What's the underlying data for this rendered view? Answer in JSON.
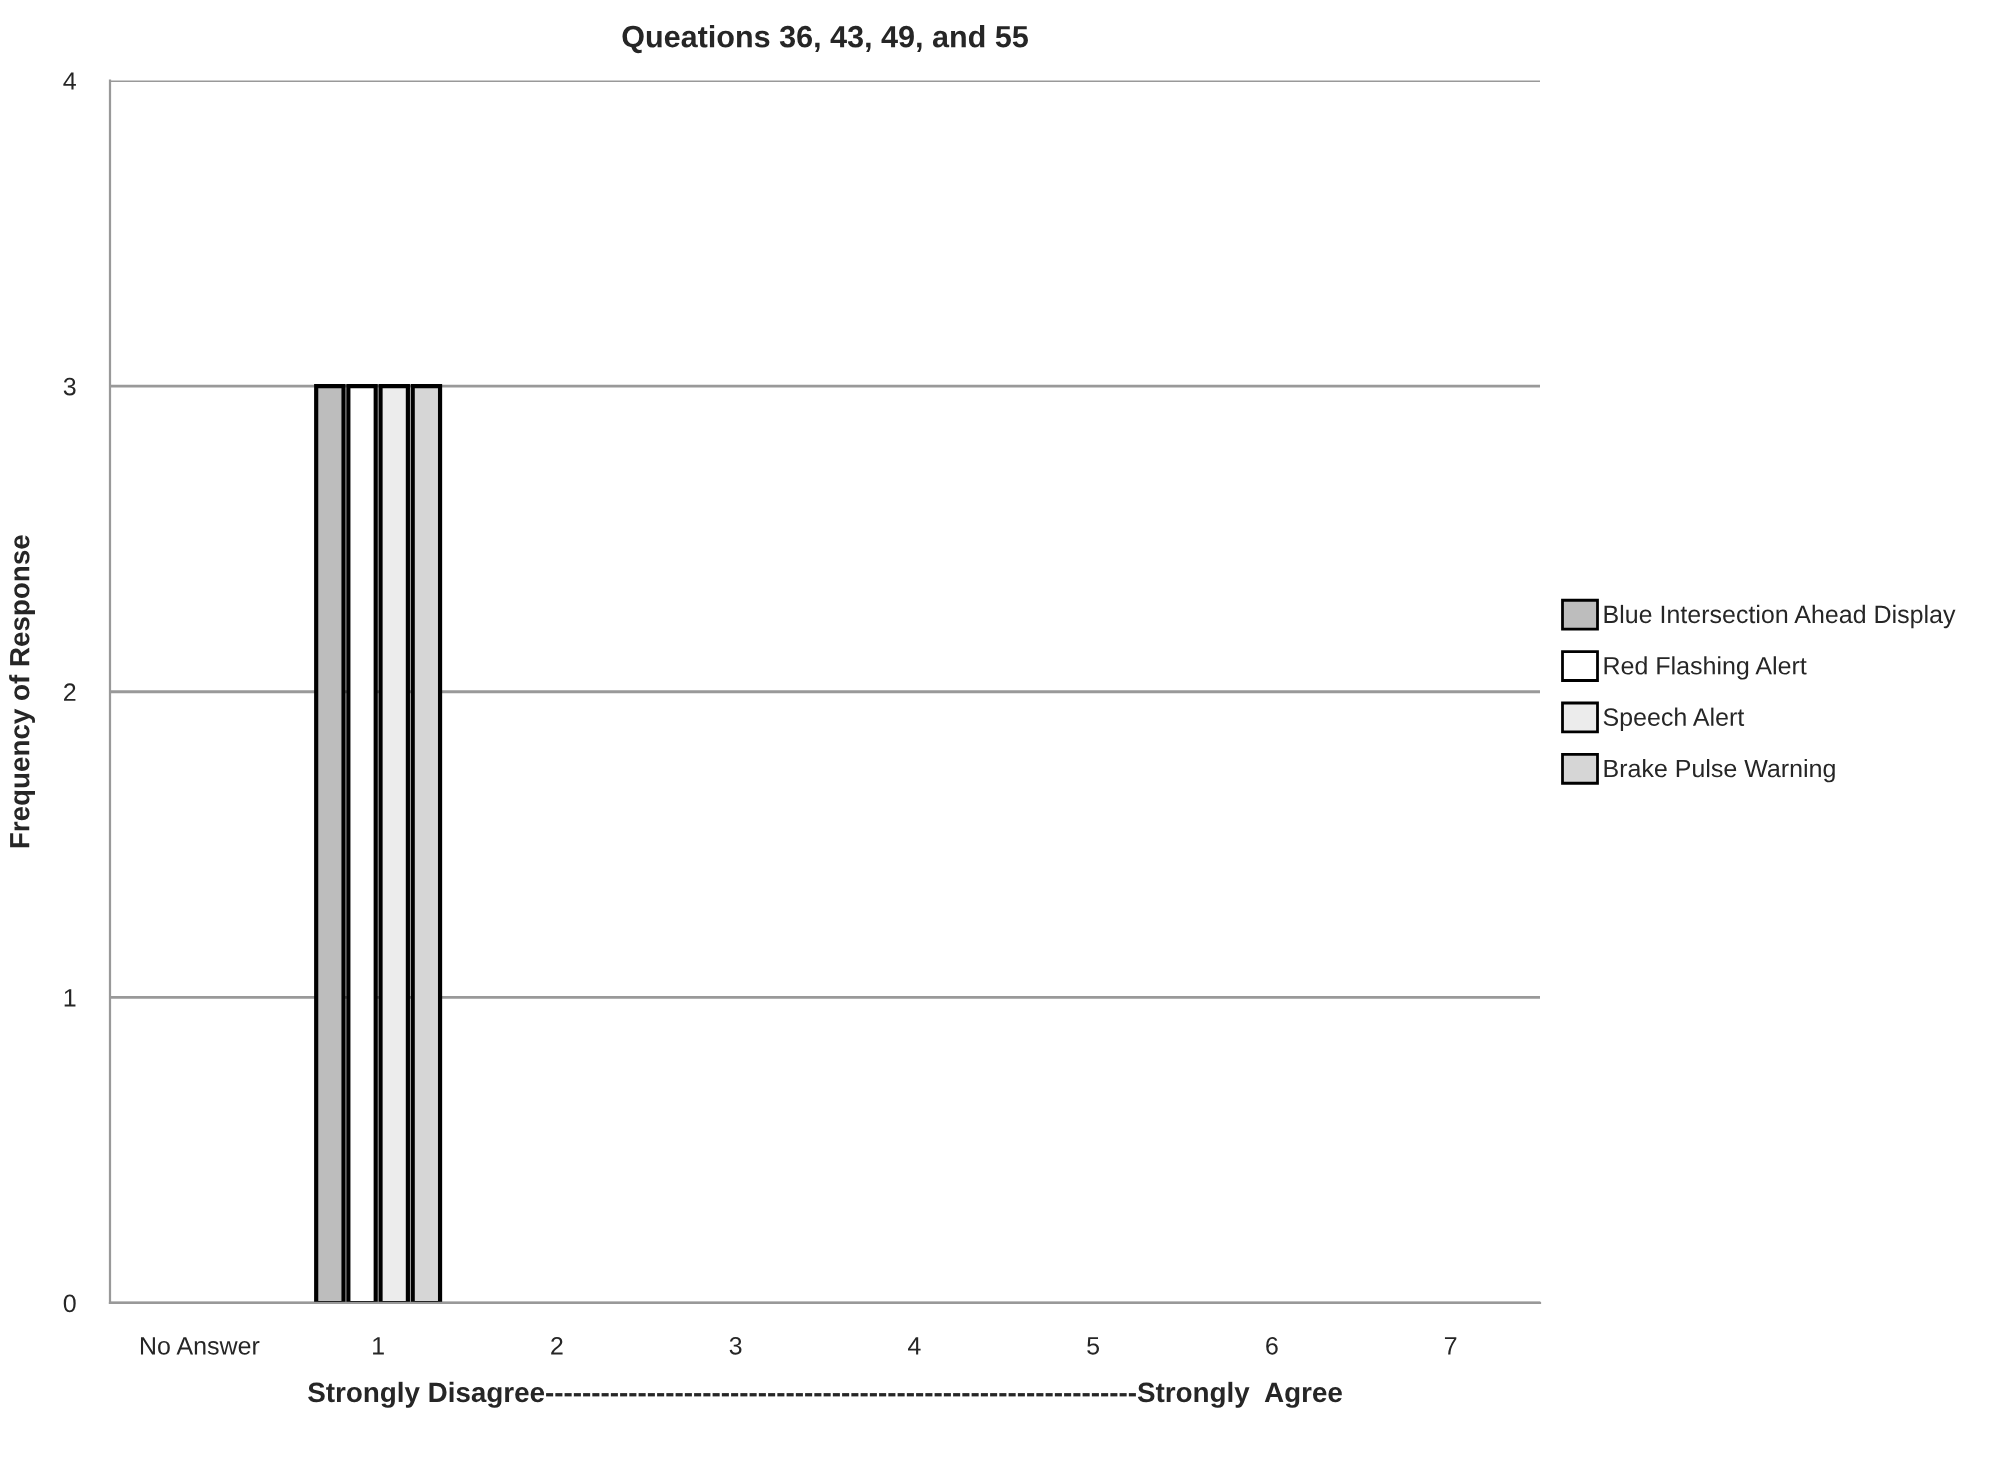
{
  "chart_data": {
    "type": "bar",
    "title": "Queations 36, 43, 49, and 55",
    "xlabel": "Strongly Disagree----------------------------------------------------------------Strongly  Agree",
    "ylabel": "Frequency of Response",
    "categories": [
      "No Answer",
      "1",
      "2",
      "3",
      "4",
      "5",
      "6",
      "7"
    ],
    "series": [
      {
        "name": "Blue Intersection Ahead Display",
        "color": "#bdbdbd",
        "values": [
          0,
          3,
          0,
          0,
          0,
          0,
          0,
          0
        ]
      },
      {
        "name": "Red Flashing Alert",
        "color": "#ffffff",
        "values": [
          0,
          3,
          0,
          0,
          0,
          0,
          0,
          0
        ]
      },
      {
        "name": "Speech Alert",
        "color": "#ececec",
        "values": [
          0,
          3,
          0,
          0,
          0,
          0,
          0,
          0
        ]
      },
      {
        "name": "Brake Pulse Warning",
        "color": "#d6d6d6",
        "values": [
          0,
          3,
          0,
          0,
          0,
          0,
          0,
          0
        ]
      }
    ],
    "ylim": [
      0,
      4
    ],
    "yticks": [
      0,
      1,
      2,
      3,
      4
    ],
    "grid": "y",
    "legend": "right"
  }
}
